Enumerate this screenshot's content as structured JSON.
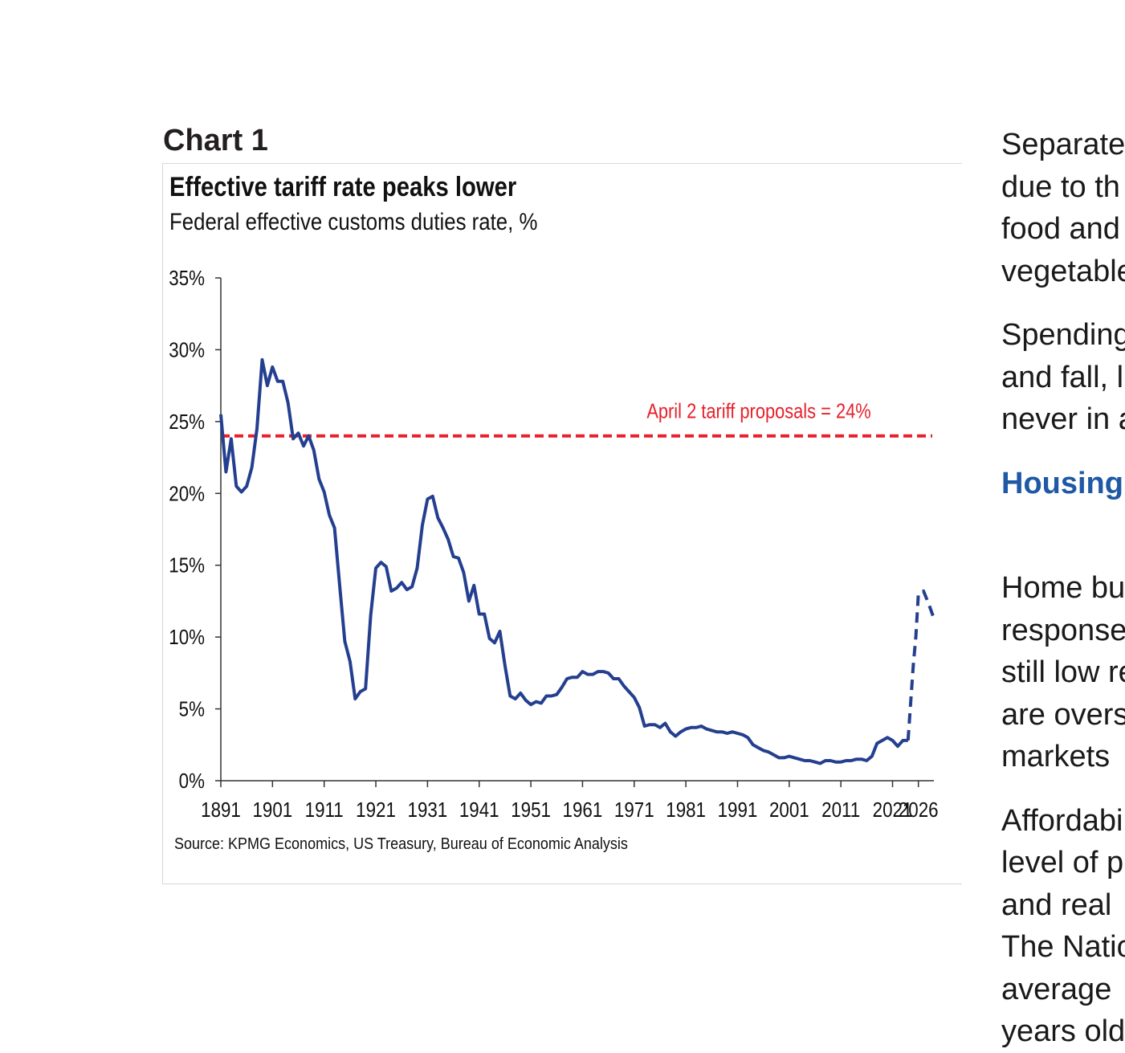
{
  "chart_label": "Chart 1",
  "chart_data": {
    "type": "line",
    "title": "Effective tariff rate peaks lower",
    "subtitle": "Federal effective customs duties rate, %",
    "source": "Source: KPMG Economics, US Treasury, Bureau of Economic Analysis",
    "xlim": [
      1891,
      2029
    ],
    "ylim": [
      0,
      35
    ],
    "x_tick_values": [
      1891,
      1901,
      1911,
      1921,
      1931,
      1941,
      1951,
      1961,
      1971,
      1981,
      1991,
      2001,
      2011,
      2021,
      2026
    ],
    "x_tick_labels": [
      "1891",
      "1901",
      "1911",
      "1921",
      "1931",
      "1941",
      "1951",
      "1961",
      "1971",
      "1981",
      "1991",
      "2001",
      "2011",
      "2021",
      "2026"
    ],
    "y_tick_values": [
      0,
      5,
      10,
      15,
      20,
      25,
      30,
      35
    ],
    "y_tick_labels": [
      "0%",
      "5%",
      "10%",
      "15%",
      "20%",
      "25%",
      "30%",
      "35%"
    ],
    "series": [
      {
        "style": "solid",
        "color": "#243f8f",
        "x": [
          1891,
          1892,
          1893,
          1894,
          1895,
          1896,
          1897,
          1898,
          1899,
          1900,
          1901,
          1902,
          1903,
          1904,
          1905,
          1906,
          1907,
          1908,
          1909,
          1910,
          1911,
          1912,
          1913,
          1914,
          1915,
          1916,
          1917,
          1918,
          1919,
          1920,
          1921,
          1922,
          1923,
          1924,
          1925,
          1926,
          1927,
          1928,
          1929,
          1930,
          1931,
          1932,
          1933,
          1934,
          1935,
          1936,
          1937,
          1938,
          1939,
          1940,
          1941,
          1942,
          1943,
          1944,
          1945,
          1946,
          1947,
          1948,
          1949,
          1950,
          1951,
          1952,
          1953,
          1954,
          1955,
          1956,
          1957,
          1958,
          1959,
          1960,
          1961,
          1962,
          1963,
          1964,
          1965,
          1966,
          1967,
          1968,
          1969,
          1970,
          1971,
          1972,
          1973,
          1974,
          1975,
          1976,
          1977,
          1978,
          1979,
          1980,
          1981,
          1982,
          1983,
          1984,
          1985,
          1986,
          1987,
          1988,
          1989,
          1990,
          1991,
          1992,
          1993,
          1994,
          1995,
          1996,
          1997,
          1998,
          1999,
          2000,
          2001,
          2002,
          2003,
          2004,
          2005,
          2006,
          2007,
          2008,
          2009,
          2010,
          2011,
          2012,
          2013,
          2014,
          2015,
          2016,
          2017,
          2018,
          2019,
          2020,
          2021,
          2022,
          2023,
          2024
        ],
        "values": [
          25.5,
          21.5,
          23.8,
          20.5,
          20.1,
          20.5,
          21.8,
          24.5,
          29.3,
          27.5,
          28.8,
          27.8,
          27.8,
          26.3,
          23.8,
          24.2,
          23.3,
          24.0,
          23.0,
          21.0,
          20.1,
          18.5,
          17.6,
          13.6,
          9.7,
          8.3,
          5.7,
          6.2,
          6.4,
          11.5,
          14.8,
          15.2,
          14.9,
          13.2,
          13.4,
          13.8,
          13.3,
          13.5,
          14.8,
          17.8,
          19.6,
          19.8,
          18.3,
          17.6,
          16.8,
          15.6,
          15.5,
          14.5,
          12.5,
          13.6,
          11.6,
          11.6,
          9.9,
          9.6,
          10.4,
          8.0,
          5.9,
          5.7,
          6.1,
          5.6,
          5.3,
          5.5,
          5.4,
          5.9,
          5.9,
          6.0,
          6.5,
          7.1,
          7.2,
          7.2,
          7.6,
          7.4,
          7.4,
          7.6,
          7.6,
          7.5,
          7.1,
          7.1,
          6.6,
          6.2,
          5.8,
          5.1,
          3.8,
          3.9,
          3.9,
          3.7,
          4.0,
          3.4,
          3.1,
          3.4,
          3.6,
          3.7,
          3.7,
          3.8,
          3.6,
          3.5,
          3.4,
          3.4,
          3.3,
          3.4,
          3.3,
          3.2,
          3.0,
          2.5,
          2.3,
          2.1,
          2.0,
          1.8,
          1.6,
          1.6,
          1.7,
          1.6,
          1.5,
          1.4,
          1.4,
          1.3,
          1.2,
          1.4,
          1.4,
          1.3,
          1.3,
          1.4,
          1.4,
          1.5,
          1.5,
          1.4,
          1.7,
          2.6,
          2.8,
          3.0,
          2.8,
          2.4,
          2.8,
          2.8
        ]
      },
      {
        "style": "dashed",
        "color": "#243f8f",
        "x": [
          2024,
          2025,
          2025.5,
          2026,
          2027,
          2028,
          2029
        ],
        "values": [
          2.8,
          8.0,
          10.0,
          13.0,
          13.2,
          12.3,
          11.3
        ]
      }
    ],
    "reference_line": {
      "value": 24,
      "color": "#e8202a",
      "label": "April 2 tariff proposals = 24%"
    },
    "grid": false,
    "legend": "none"
  },
  "side_text": {
    "para1": [
      "Separate",
      "due to th",
      "food and",
      "vegetable"
    ],
    "para2": [
      "Spending",
      "and fall, l",
      "never in a"
    ],
    "heading": "Housing",
    "para3": [
      "Home bu",
      "response",
      "still low re",
      "are overs",
      "markets"
    ],
    "para4": [
      "Affordabi",
      "level of p",
      "and real",
      "The Natio",
      "average",
      "years old"
    ]
  }
}
